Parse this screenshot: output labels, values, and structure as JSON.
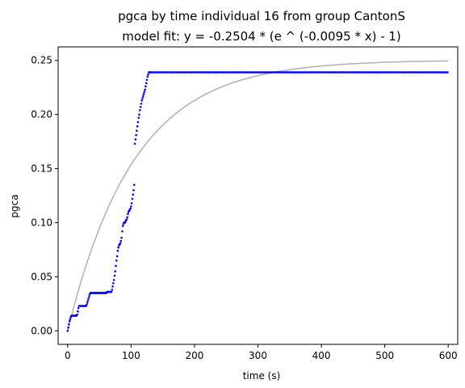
{
  "chart_data": {
    "type": "scatter",
    "title": "pgca by time individual 16 from group CantonS",
    "subtitle": "model fit: y = -0.2504 * (e ^ (-0.0095 * x) - 1)",
    "xlabel": "time (s)",
    "ylabel": "pgca",
    "xlim": [
      -15,
      615
    ],
    "ylim": [
      -0.0125,
      0.2625
    ],
    "xticks": [
      0,
      100,
      200,
      300,
      400,
      500,
      600
    ],
    "xtick_labels": [
      "0",
      "100",
      "200",
      "300",
      "400",
      "500",
      "600"
    ],
    "yticks": [
      0.0,
      0.05,
      0.1,
      0.15,
      0.2,
      0.25
    ],
    "ytick_labels": [
      "0.00",
      "0.05",
      "0.10",
      "0.15",
      "0.20",
      "0.25"
    ],
    "grid": false,
    "colors": {
      "data": "#0000ff",
      "fit": "#b0b0b0"
    },
    "fit": {
      "a": 0.2504,
      "k": 0.0095,
      "x_range": [
        0,
        600
      ]
    },
    "scatter_segments": [
      [
        0,
        0.0
      ],
      [
        1,
        0.003
      ],
      [
        2,
        0.006
      ],
      [
        3,
        0.009
      ],
      [
        4,
        0.011
      ],
      [
        5,
        0.013
      ],
      [
        6,
        0.014
      ],
      [
        7,
        0.014
      ],
      [
        8,
        0.014
      ],
      [
        9,
        0.014
      ],
      [
        10,
        0.014
      ],
      [
        11,
        0.014
      ],
      [
        12,
        0.014
      ],
      [
        13,
        0.014
      ],
      [
        14,
        0.014
      ],
      [
        15,
        0.015
      ],
      [
        16,
        0.018
      ],
      [
        17,
        0.021
      ],
      [
        18,
        0.023
      ],
      [
        19,
        0.023
      ],
      [
        20,
        0.023
      ],
      [
        21,
        0.023
      ],
      [
        22,
        0.023
      ],
      [
        23,
        0.023
      ],
      [
        24,
        0.023
      ],
      [
        25,
        0.023
      ],
      [
        26,
        0.023
      ],
      [
        27,
        0.023
      ],
      [
        28,
        0.023
      ],
      [
        29,
        0.023
      ],
      [
        30,
        0.024
      ],
      [
        31,
        0.026
      ],
      [
        32,
        0.028
      ],
      [
        33,
        0.03
      ],
      [
        34,
        0.032
      ],
      [
        35,
        0.034
      ],
      [
        36,
        0.035
      ],
      [
        37,
        0.035
      ],
      [
        38,
        0.035
      ],
      [
        39,
        0.035
      ],
      [
        40,
        0.035
      ],
      [
        41,
        0.035
      ],
      [
        42,
        0.035
      ],
      [
        43,
        0.035
      ],
      [
        44,
        0.035
      ],
      [
        45,
        0.035
      ],
      [
        46,
        0.035
      ],
      [
        47,
        0.035
      ],
      [
        48,
        0.035
      ],
      [
        49,
        0.035
      ],
      [
        50,
        0.035
      ],
      [
        51,
        0.035
      ],
      [
        52,
        0.035
      ],
      [
        53,
        0.035
      ],
      [
        54,
        0.035
      ],
      [
        55,
        0.035
      ],
      [
        56,
        0.035
      ],
      [
        57,
        0.035
      ],
      [
        58,
        0.035
      ],
      [
        59,
        0.035
      ],
      [
        60,
        0.035
      ],
      [
        61,
        0.035
      ],
      [
        62,
        0.036
      ],
      [
        63,
        0.036
      ],
      [
        64,
        0.036
      ],
      [
        65,
        0.036
      ],
      [
        66,
        0.036
      ],
      [
        67,
        0.036
      ],
      [
        68,
        0.036
      ],
      [
        69,
        0.036
      ],
      [
        70,
        0.038
      ],
      [
        71,
        0.041
      ],
      [
        72,
        0.044
      ],
      [
        73,
        0.047
      ],
      [
        74,
        0.051
      ],
      [
        75,
        0.055
      ],
      [
        76,
        0.06
      ],
      [
        77,
        0.065
      ],
      [
        78,
        0.069
      ],
      [
        79,
        0.074
      ],
      [
        80,
        0.077
      ],
      [
        81,
        0.079
      ],
      [
        82,
        0.08
      ],
      [
        83,
        0.081
      ],
      [
        84,
        0.083
      ],
      [
        85,
        0.086
      ],
      [
        86,
        0.092
      ],
      [
        87,
        0.097
      ],
      [
        88,
        0.099
      ],
      [
        89,
        0.1
      ],
      [
        90,
        0.1
      ],
      [
        91,
        0.101
      ],
      [
        92,
        0.102
      ],
      [
        93,
        0.103
      ],
      [
        94,
        0.105
      ],
      [
        95,
        0.108
      ],
      [
        96,
        0.11
      ],
      [
        97,
        0.111
      ],
      [
        98,
        0.112
      ],
      [
        99,
        0.113
      ],
      [
        100,
        0.115
      ],
      [
        101,
        0.118
      ],
      [
        102,
        0.122
      ],
      [
        103,
        0.126
      ],
      [
        104,
        0.13
      ],
      [
        105,
        0.135
      ],
      [
        106,
        0.173
      ],
      [
        107,
        0.177
      ],
      [
        108,
        0.181
      ],
      [
        109,
        0.185
      ],
      [
        110,
        0.189
      ],
      [
        111,
        0.193
      ],
      [
        112,
        0.197
      ],
      [
        113,
        0.2
      ],
      [
        114,
        0.204
      ],
      [
        115,
        0.207
      ],
      [
        116,
        0.21
      ],
      [
        117,
        0.213
      ],
      [
        118,
        0.215
      ],
      [
        119,
        0.217
      ],
      [
        120,
        0.219
      ],
      [
        121,
        0.221
      ],
      [
        122,
        0.223
      ],
      [
        123,
        0.226
      ],
      [
        124,
        0.229
      ],
      [
        125,
        0.232
      ],
      [
        126,
        0.235
      ],
      [
        127,
        0.237
      ],
      [
        128,
        0.239
      ],
      [
        129,
        0.239
      ],
      [
        130,
        0.239
      ]
    ],
    "plateau": {
      "x_start": 131,
      "x_end": 600,
      "step": 2.6,
      "y": 0.239
    }
  }
}
